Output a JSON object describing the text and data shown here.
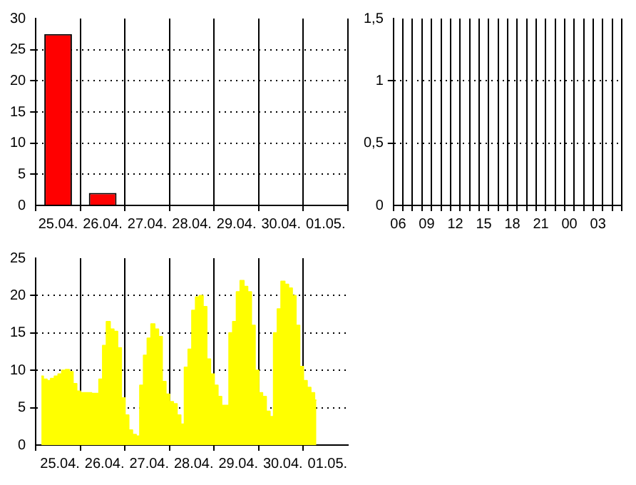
{
  "chart_data": [
    {
      "type": "bar",
      "categories": [
        "25.04.",
        "26.04.",
        "27.04.",
        "28.04.",
        "29.04.",
        "30.04.",
        "01.05."
      ],
      "values": [
        27.5,
        2,
        null,
        null,
        null,
        null,
        null
      ],
      "color": "#ff0000",
      "ylim": [
        0,
        30
      ],
      "yticks": [
        0,
        5,
        10,
        15,
        20,
        25,
        30
      ],
      "grid": true
    },
    {
      "type": "bar",
      "categories": [
        "06",
        null,
        null,
        "09",
        null,
        null,
        "12",
        null,
        null,
        "15",
        null,
        null,
        "18",
        null,
        null,
        "21",
        null,
        null,
        "00",
        null,
        null,
        "03",
        null,
        null
      ],
      "values": [
        0,
        0,
        0,
        0,
        0,
        0,
        0,
        0,
        0,
        0,
        0,
        0,
        0,
        0,
        0,
        0,
        0,
        0,
        0,
        0,
        0,
        0,
        0,
        0
      ],
      "color": "#000000",
      "ylim": [
        0,
        1.5
      ],
      "yticks": [
        0,
        {
          "value": 0.5,
          "label": "0,5"
        },
        1,
        {
          "value": 1.5,
          "label": "1,5"
        }
      ],
      "grid": true
    },
    {
      "type": "area",
      "categories": [
        null,
        null,
        null,
        null,
        null,
        null,
        "25.04.",
        null,
        null,
        null,
        null,
        null,
        null,
        null,
        null,
        null,
        null,
        null,
        "26.04.",
        null,
        null,
        null,
        null,
        null,
        null,
        null,
        null,
        null,
        null,
        null,
        "27.04.",
        null,
        null,
        null,
        null,
        null,
        null,
        null,
        null,
        null,
        null,
        null,
        "28.04.",
        null,
        null,
        null,
        null,
        null,
        null,
        null,
        null,
        null,
        null,
        null,
        "29.04.",
        null,
        null,
        null,
        null,
        null,
        null,
        null,
        null,
        null,
        null,
        null,
        "30.04.",
        null,
        null,
        null,
        null,
        null,
        null,
        null,
        null,
        null,
        null,
        null,
        "01.05.",
        null,
        null,
        null,
        null,
        null
      ],
      "values": [
        null,
        9.2,
        8.8,
        8.6,
        8.9,
        9.2,
        9.5,
        10,
        10.1,
        9.8,
        8.2,
        7.2,
        7,
        7,
        7,
        6.9,
        6.9,
        8.8,
        13.3,
        16.5,
        15.5,
        15.2,
        13,
        6.3,
        4,
        2,
        1.4,
        1.2,
        8,
        12,
        14.3,
        16.2,
        15.5,
        14.5,
        8.5,
        6.8,
        5.8,
        5.5,
        4,
        2.8,
        10.4,
        12.8,
        18,
        19.8,
        20,
        18.5,
        11.5,
        9.5,
        8,
        6.5,
        5.3,
        5.3,
        15,
        16.5,
        20.5,
        22,
        21.2,
        20.5,
        16,
        10,
        7,
        6.5,
        4.5,
        3.8,
        15,
        18.2,
        21.9,
        21.5,
        21,
        20,
        16,
        10.5,
        8.6,
        7.7,
        7,
        6,
        null,
        null,
        null,
        null,
        null,
        null,
        null,
        null
      ],
      "color": "#ffff00",
      "ylim": [
        0,
        25
      ],
      "yticks": [
        0,
        5,
        10,
        15,
        20,
        25
      ],
      "grid": true
    }
  ]
}
